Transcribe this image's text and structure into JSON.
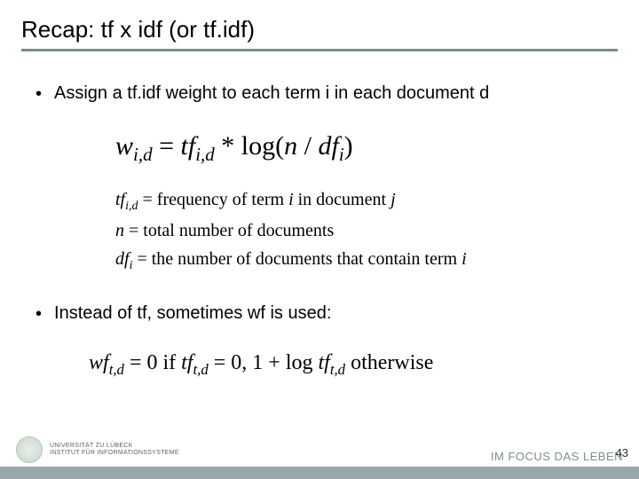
{
  "colors": {
    "underline": "#7a8a8f",
    "footer_band": "#9aa8ac",
    "tagline": "#7e8e92",
    "title_text": "#000000",
    "body_text": "#000000"
  },
  "title": "Recap: tf x idf (or tf.idf)",
  "bullets": {
    "b1": "Assign a tf.idf weight to each term i in each document d",
    "b2": "Instead of tf, sometimes wf is used:"
  },
  "formula_main": {
    "lhs_w": "w",
    "lhs_sub": "i,d",
    "eq": " = ",
    "tf": "tf",
    "tf_sub": "i,d",
    "star": " * ",
    "log": "log(",
    "n": "n",
    "slash": " / ",
    "df": "df",
    "df_sub": "i",
    "close": ")"
  },
  "defs": {
    "d1_a": "tf",
    "d1_sub": "i,d",
    "d1_b": " = frequency of term ",
    "d1_c": "i",
    "d1_d": " in document ",
    "d1_e": "j",
    "d2_a": "n",
    "d2_b": " = total number of documents",
    "d3_a": "df",
    "d3_sub": "i",
    "d3_b": " = the number of documents that contain term ",
    "d3_c": "i"
  },
  "formula_wf": {
    "wf": "wf",
    "wf_sub": "t,d",
    "eq1": " = 0 if ",
    "tf": "tf",
    "tf_sub": "t,d",
    "eq0": " = 0,  ",
    "one_plus": "1 + log ",
    "tf2": "tf",
    "tf2_sub": "t,d",
    "otherwise": "  otherwise"
  },
  "footer": {
    "uni_line1": "UNIVERSITÄT ZU LÜBECK",
    "uni_line2": "INSTITUT FÜR INFORMATIONSSYSTEME",
    "tagline": "IM FOCUS DAS LEBEN",
    "page": "43"
  }
}
